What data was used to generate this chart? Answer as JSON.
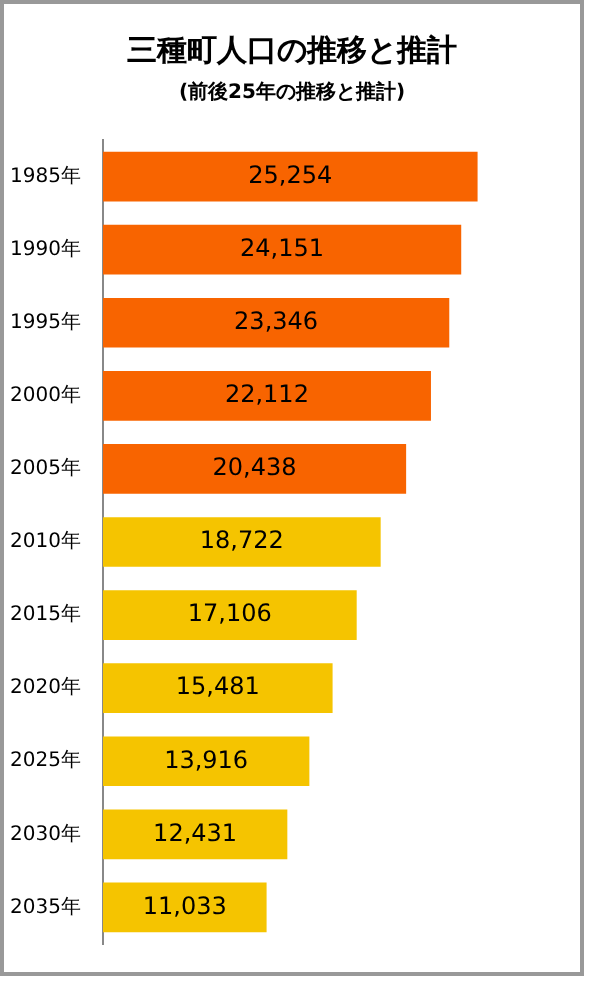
{
  "chart_data": {
    "type": "bar",
    "orientation": "horizontal",
    "title": "三種町人口の推移と推計",
    "subtitle": "(前後25年の推移と推計)",
    "categories": [
      "1985年",
      "1990年",
      "1995年",
      "2000年",
      "2005年",
      "2010年",
      "2015年",
      "2020年",
      "2025年",
      "2030年",
      "2035年"
    ],
    "values": [
      25254,
      24151,
      23346,
      22112,
      20438,
      18722,
      17106,
      15481,
      13916,
      12431,
      11033
    ],
    "colors": [
      "#f86400",
      "#f86400",
      "#f86400",
      "#f86400",
      "#f86400",
      "#f5c400",
      "#f5c400",
      "#f5c400",
      "#f5c400",
      "#f5c400",
      "#f5c400"
    ],
    "value_labels": [
      "25,254",
      "24,151",
      "23,346",
      "22,112",
      "20,438",
      "18,722",
      "17,106",
      "15,481",
      "13,916",
      "12,431",
      "11,033"
    ],
    "tick_labels": "y",
    "grid": false,
    "legend": false
  }
}
